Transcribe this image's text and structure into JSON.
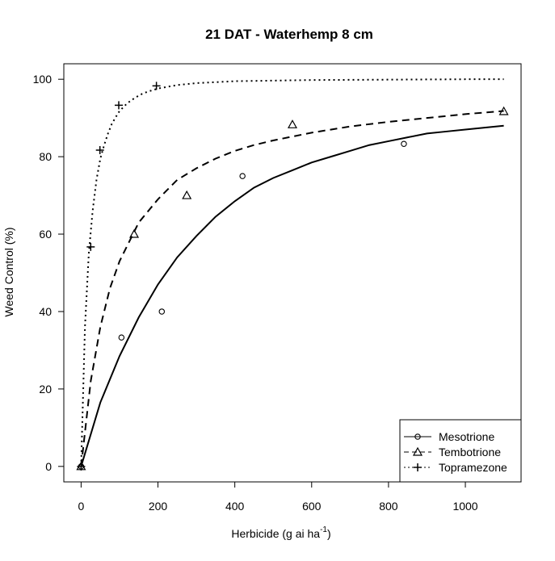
{
  "chart_data": {
    "type": "scatter",
    "title": "21 DAT - Waterhemp 8 cm",
    "xlabel": "Herbicide (g ai ha",
    "xlabel_superscript": "-1",
    "xlabel_close": ")",
    "ylabel": "Weed Control (%)",
    "xlim": [
      -45,
      1145
    ],
    "ylim": [
      -4,
      104
    ],
    "x_ticks": [
      0,
      200,
      400,
      600,
      800,
      1000
    ],
    "y_ticks": [
      0,
      20,
      40,
      60,
      80,
      100
    ],
    "legend_position": "bottom-right",
    "grid": false,
    "series": [
      {
        "name": "Mesotrione",
        "marker": "circle",
        "line": "solid",
        "points": {
          "x": [
            0,
            105,
            210,
            420,
            840
          ],
          "y": [
            0,
            33.3,
            40,
            75,
            83.3
          ]
        },
        "curve": {
          "x": [
            0,
            50,
            100,
            150,
            200,
            250,
            300,
            350,
            400,
            450,
            500,
            550,
            600,
            650,
            700,
            750,
            800,
            850,
            900,
            950,
            1000,
            1050,
            1100
          ],
          "y": [
            0,
            16.5,
            28.5,
            38.5,
            47,
            54,
            59.5,
            64.5,
            68.5,
            72,
            74.5,
            76.5,
            78.5,
            80,
            81.5,
            83,
            84,
            85,
            86,
            86.5,
            87,
            87.5,
            88
          ]
        }
      },
      {
        "name": "Tembotrione",
        "marker": "triangle",
        "line": "dashed",
        "points": {
          "x": [
            0,
            138,
            275,
            550,
            1100
          ],
          "y": [
            0,
            60,
            70,
            88.3,
            91.7
          ]
        },
        "curve": {
          "x": [
            0,
            25,
            50,
            75,
            100,
            150,
            200,
            250,
            300,
            350,
            400,
            450,
            500,
            550,
            600,
            700,
            800,
            900,
            1000,
            1100
          ],
          "y": [
            0,
            22,
            36,
            46,
            53,
            63,
            69,
            74,
            77,
            79.5,
            81.5,
            83,
            84.2,
            85.2,
            86.2,
            87.8,
            89,
            90,
            91,
            91.8
          ]
        }
      },
      {
        "name": "Topramezone",
        "marker": "plus",
        "line": "dotted",
        "points": {
          "x": [
            0,
            25,
            49,
            98,
            196
          ],
          "y": [
            0,
            56.7,
            81.7,
            93.3,
            98.3
          ]
        },
        "curve": {
          "x": [
            0,
            10,
            20,
            30,
            40,
            50,
            60,
            70,
            80,
            90,
            100,
            120,
            140,
            160,
            180,
            200,
            250,
            300,
            400,
            600,
            800,
            1000,
            1100
          ],
          "y": [
            0,
            36,
            55,
            66,
            74,
            79.5,
            83,
            86,
            88.5,
            90.2,
            91.8,
            93.8,
            95.2,
            96.3,
            97,
            97.6,
            98.5,
            99,
            99.5,
            99.8,
            99.9,
            100,
            100
          ]
        }
      }
    ]
  }
}
